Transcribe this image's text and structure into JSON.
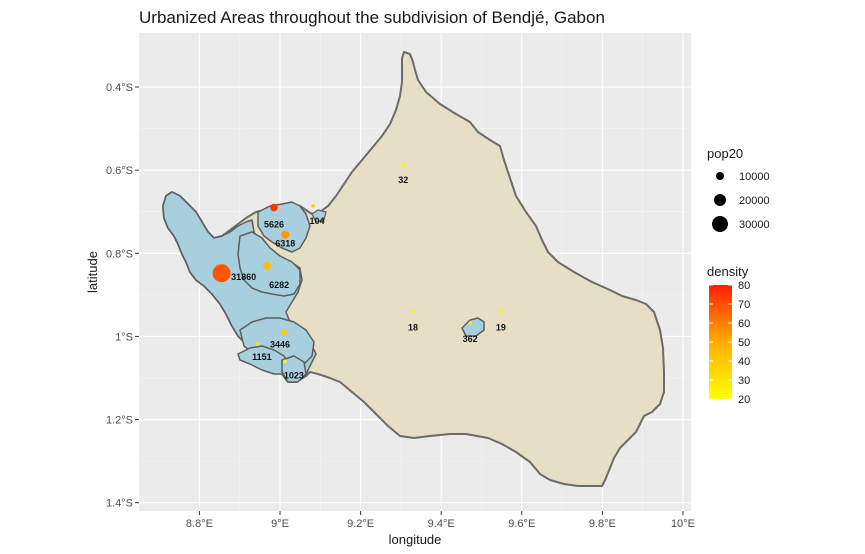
{
  "chart_data": {
    "type": "map",
    "title": "Urbanized Areas throughout the subdivision of Bendjé, Gabon",
    "xlabel": "longitude",
    "ylabel": "latitude",
    "xlim": [
      8.65,
      10.02
    ],
    "ylim": [
      -1.42,
      -0.27
    ],
    "x_ticks": [
      {
        "value": 8.8,
        "label": "8.8°E"
      },
      {
        "value": 9.0,
        "label": "9°E"
      },
      {
        "value": 9.2,
        "label": "9.2°E"
      },
      {
        "value": 9.4,
        "label": "9.4°E"
      },
      {
        "value": 9.6,
        "label": "9.6°E"
      },
      {
        "value": 9.8,
        "label": "9.8°E"
      },
      {
        "value": 10.0,
        "label": "10°E"
      }
    ],
    "y_ticks": [
      {
        "value": -0.4,
        "label": "0.4°S"
      },
      {
        "value": -0.6,
        "label": "0.6°S"
      },
      {
        "value": -0.8,
        "label": "0.8°S"
      },
      {
        "value": -1.0,
        "label": "1°S"
      },
      {
        "value": -1.2,
        "label": "1.2°S"
      },
      {
        "value": -1.4,
        "label": "1.4°S"
      }
    ],
    "grid": true,
    "colors": {
      "panel": "#ebebeb",
      "grid_major": "#ffffff",
      "subdivision_fill": "#e6dfc6",
      "urban_fill": "#a8cfdd",
      "outline": "#6b6b6b",
      "density_low": "#ffff00",
      "density_high": "#ff2000"
    },
    "points": [
      {
        "label": "31860",
        "lon": 8.855,
        "lat": -0.848,
        "pop20": 31860,
        "density": 68
      },
      {
        "label": "5626",
        "lon": 8.985,
        "lat": -0.69,
        "pop20": 5626,
        "density": 75
      },
      {
        "label": "6318",
        "lon": 9.013,
        "lat": -0.755,
        "pop20": 6318,
        "density": 55
      },
      {
        "label": "6282",
        "lon": 8.968,
        "lat": -0.83,
        "pop20": 6282,
        "density": 45
      },
      {
        "label": "104",
        "lon": 9.082,
        "lat": -0.686,
        "pop20": 104,
        "density": 35
      },
      {
        "label": "32",
        "lon": 9.306,
        "lat": -0.588,
        "pop20": 32,
        "density": 25
      },
      {
        "label": "18",
        "lon": 9.33,
        "lat": -0.94,
        "pop20": 18,
        "density": 25
      },
      {
        "label": "19",
        "lon": 9.548,
        "lat": -0.94,
        "pop20": 19,
        "density": 25
      },
      {
        "label": "362",
        "lon": 9.472,
        "lat": -0.968,
        "pop20": 362,
        "density": 25
      },
      {
        "label": "3446",
        "lon": 9.01,
        "lat": -0.99,
        "pop20": 3446,
        "density": 38
      },
      {
        "label": "1151",
        "lon": 8.945,
        "lat": -1.018,
        "pop20": 1151,
        "density": 30
      },
      {
        "label": "1023",
        "lon": 9.012,
        "lat": -1.06,
        "pop20": 1023,
        "density": 25
      }
    ],
    "size_legend": {
      "title": "pop20",
      "entries": [
        10000,
        20000,
        30000
      ]
    },
    "color_legend": {
      "title": "density",
      "min": 20,
      "max": 80,
      "ticks": [
        80,
        70,
        60,
        50,
        40,
        30,
        20
      ]
    }
  }
}
